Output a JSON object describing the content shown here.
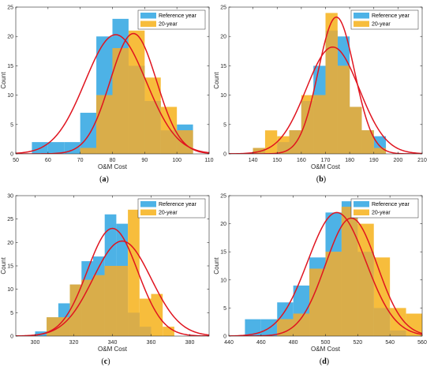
{
  "colors": {
    "reference": "#4db2e6",
    "twenty": "#f7bd3c",
    "overlap": "#d9ad4a",
    "curve": "#e0141f",
    "axis": "#262626"
  },
  "legend": {
    "reference": "Reference year",
    "twenty": "20-year"
  },
  "chart_data": [
    {
      "panel": "a",
      "caption": "a",
      "type": "histogram",
      "xlabel": "O&M Cost",
      "ylabel": "Count",
      "xlim": [
        50,
        110
      ],
      "ylim": [
        0,
        25
      ],
      "xticks": [
        50,
        60,
        70,
        80,
        90,
        100,
        110
      ],
      "yticks": [
        0,
        5,
        10,
        15,
        20,
        25
      ],
      "legend_position": "top-right",
      "series": [
        {
          "name": "Reference year",
          "bins": [
            [
              55,
              60,
              2
            ],
            [
              60,
              65,
              2
            ],
            [
              65,
              70,
              2
            ],
            [
              70,
              75,
              7
            ],
            [
              75,
              80,
              20
            ],
            [
              80,
              85,
              23
            ],
            [
              85,
              90,
              15
            ],
            [
              90,
              95,
              9
            ],
            [
              95,
              100,
              4
            ],
            [
              100,
              105,
              5
            ]
          ]
        },
        {
          "name": "20-year",
          "bins": [
            [
              70,
              75,
              1
            ],
            [
              75,
              80,
              10
            ],
            [
              80,
              85,
              18
            ],
            [
              85,
              90,
              21
            ],
            [
              90,
              95,
              13
            ],
            [
              95,
              100,
              8
            ],
            [
              100,
              105,
              4
            ]
          ]
        }
      ],
      "fits": [
        {
          "series": "Reference year",
          "mean": 81,
          "sd": 9.5,
          "peak": 20.3
        },
        {
          "series": "20-year",
          "mean": 86.5,
          "sd": 7.2,
          "peak": 20.5
        }
      ]
    },
    {
      "panel": "b",
      "caption": "b",
      "type": "histogram",
      "xlabel": "O&M Cost",
      "ylabel": "Count",
      "xlim": [
        130,
        210
      ],
      "ylim": [
        0,
        25
      ],
      "xticks": [
        140,
        150,
        160,
        170,
        180,
        190,
        200,
        210
      ],
      "yticks": [
        0,
        5,
        10,
        15,
        20,
        25
      ],
      "legend_position": "top-right",
      "series": [
        {
          "name": "Reference year",
          "bins": [
            [
              140,
              145,
              1
            ],
            [
              150,
              155,
              2
            ],
            [
              155,
              160,
              4
            ],
            [
              160,
              165,
              9
            ],
            [
              165,
              170,
              15
            ],
            [
              170,
              175,
              21
            ],
            [
              175,
              180,
              20
            ],
            [
              180,
              185,
              8
            ],
            [
              185,
              190,
              4
            ],
            [
              190,
              195,
              3
            ]
          ]
        },
        {
          "name": "20-year",
          "bins": [
            [
              140,
              145,
              1
            ],
            [
              145,
              150,
              4
            ],
            [
              150,
              155,
              3
            ],
            [
              155,
              160,
              4
            ],
            [
              160,
              165,
              10
            ],
            [
              165,
              170,
              10
            ],
            [
              170,
              175,
              24
            ],
            [
              175,
              180,
              15
            ],
            [
              180,
              185,
              8
            ],
            [
              185,
              190,
              4
            ],
            [
              190,
              195,
              1
            ]
          ]
        }
      ],
      "fits": [
        {
          "series": "Reference year",
          "mean": 174.5,
          "sd": 7.5,
          "peak": 23.3
        },
        {
          "series": "20-year",
          "mean": 173,
          "sd": 11,
          "peak": 18.2
        }
      ]
    },
    {
      "panel": "c",
      "caption": "c",
      "type": "histogram",
      "xlabel": "O&M Cost",
      "ylabel": "Count",
      "xlim": [
        290,
        390
      ],
      "ylim": [
        0,
        30
      ],
      "xticks": [
        300,
        320,
        340,
        360,
        380
      ],
      "yticks": [
        0,
        5,
        10,
        15,
        20,
        25,
        30
      ],
      "legend_position": "top-right",
      "series": [
        {
          "name": "Reference year",
          "bins": [
            [
              300,
              306,
              1
            ],
            [
              306,
              312,
              4
            ],
            [
              312,
              318,
              7
            ],
            [
              318,
              324,
              11
            ],
            [
              324,
              330,
              16
            ],
            [
              330,
              336,
              17
            ],
            [
              336,
              342,
              26
            ],
            [
              342,
              348,
              24
            ],
            [
              348,
              354,
              5
            ],
            [
              354,
              360,
              2
            ]
          ]
        },
        {
          "name": "20-year",
          "bins": [
            [
              306,
              312,
              4
            ],
            [
              312,
              318,
              4
            ],
            [
              318,
              324,
              11
            ],
            [
              324,
              330,
              12
            ],
            [
              330,
              336,
              13
            ],
            [
              336,
              342,
              15
            ],
            [
              342,
              348,
              15
            ],
            [
              348,
              354,
              27
            ],
            [
              354,
              360,
              8
            ],
            [
              360,
              366,
              9
            ],
            [
              366,
              372,
              2
            ]
          ]
        }
      ],
      "fits": [
        {
          "series": "Reference year",
          "mean": 340,
          "sd": 13,
          "peak": 23
        },
        {
          "series": "20-year",
          "mean": 345,
          "sd": 15,
          "peak": 20.3
        }
      ]
    },
    {
      "panel": "d",
      "caption": "d",
      "type": "histogram",
      "xlabel": "O&M Cost",
      "ylabel": "Count",
      "xlim": [
        440,
        560
      ],
      "ylim": [
        0,
        25
      ],
      "xticks": [
        440,
        460,
        480,
        500,
        520,
        540,
        560
      ],
      "yticks": [
        0,
        5,
        10,
        15,
        20,
        25
      ],
      "legend_position": "top-right",
      "series": [
        {
          "name": "Reference year",
          "bins": [
            [
              450,
              460,
              3
            ],
            [
              460,
              470,
              3
            ],
            [
              470,
              480,
              6
            ],
            [
              480,
              490,
              9
            ],
            [
              490,
              500,
              14
            ],
            [
              500,
              510,
              22
            ],
            [
              510,
              520,
              24
            ],
            [
              520,
              530,
              15
            ],
            [
              530,
              540,
              5
            ],
            [
              540,
              550,
              1
            ]
          ]
        },
        {
          "name": "20-year",
          "bins": [
            [
              470,
              480,
              3
            ],
            [
              480,
              490,
              4
            ],
            [
              490,
              500,
              12
            ],
            [
              500,
              510,
              15
            ],
            [
              510,
              520,
              23
            ],
            [
              520,
              530,
              20
            ],
            [
              530,
              540,
              14
            ],
            [
              540,
              550,
              5
            ],
            [
              550,
              560,
              4
            ]
          ]
        }
      ],
      "fits": [
        {
          "series": "Reference year",
          "mean": 507,
          "sd": 18,
          "peak": 22
        },
        {
          "series": "20-year",
          "mean": 516,
          "sd": 16,
          "peak": 21
        }
      ]
    }
  ]
}
